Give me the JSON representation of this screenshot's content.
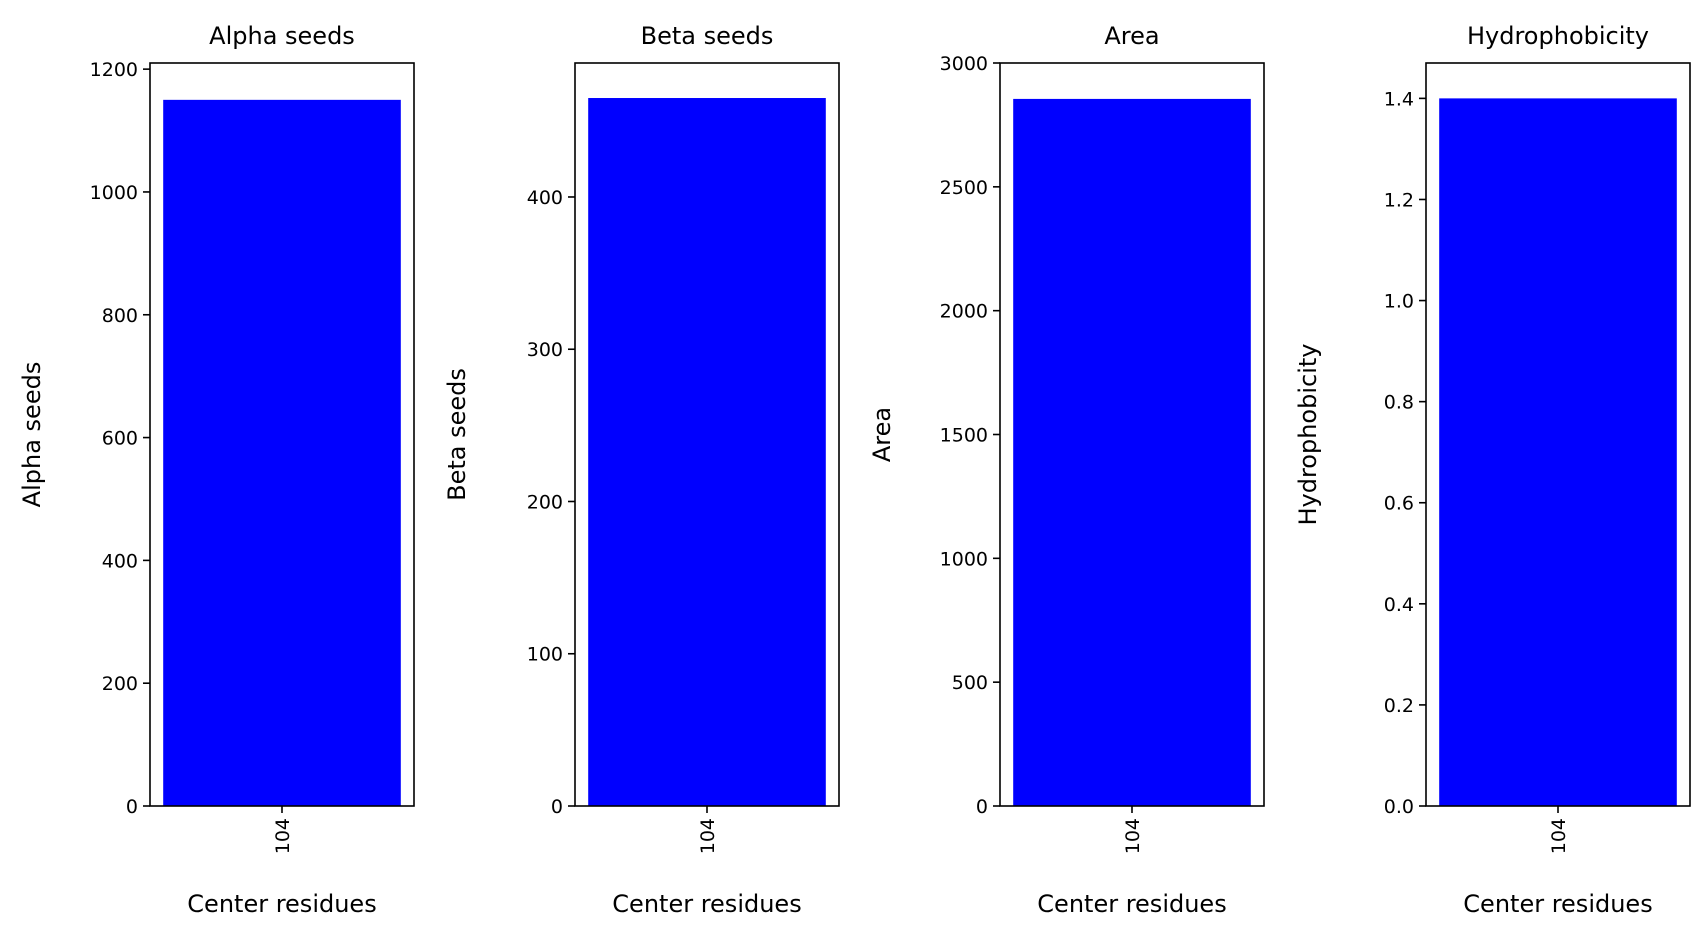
{
  "chart_data": [
    {
      "type": "bar",
      "title": "Alpha seeds",
      "xlabel": "Center residues",
      "ylabel": "Alpha seeds",
      "categories": [
        "104"
      ],
      "values": [
        1150
      ],
      "ylim": [
        0,
        1210
      ],
      "yticks": [
        0,
        200,
        400,
        600,
        800,
        1000,
        1200
      ],
      "ytick_labels": [
        "0",
        "200",
        "400",
        "600",
        "800",
        "1000",
        "1200"
      ],
      "bar_color": "#0000ff",
      "grid": false
    },
    {
      "type": "bar",
      "title": "Beta seeds",
      "xlabel": "Center residues",
      "ylabel": "Beta seeds",
      "categories": [
        "104"
      ],
      "values": [
        465
      ],
      "ylim": [
        0,
        488
      ],
      "yticks": [
        0,
        100,
        200,
        300,
        400
      ],
      "ytick_labels": [
        "0",
        "100",
        "200",
        "300",
        "400"
      ],
      "bar_color": "#0000ff",
      "grid": false
    },
    {
      "type": "bar",
      "title": "Area",
      "xlabel": "Center residues",
      "ylabel": "Area",
      "categories": [
        "104"
      ],
      "values": [
        2855
      ],
      "ylim": [
        0,
        3000
      ],
      "yticks": [
        0,
        500,
        1000,
        1500,
        2000,
        2500,
        3000
      ],
      "ytick_labels": [
        "0",
        "500",
        "1000",
        "1500",
        "2000",
        "2500",
        "3000"
      ],
      "bar_color": "#0000ff",
      "grid": false
    },
    {
      "type": "bar",
      "title": "Hydrophobicity",
      "xlabel": "Center residues",
      "ylabel": "Hydrophobicity",
      "categories": [
        "104"
      ],
      "values": [
        1.4
      ],
      "ylim": [
        0,
        1.47
      ],
      "yticks": [
        0,
        0.2,
        0.4,
        0.6,
        0.8,
        1.0,
        1.2,
        1.4
      ],
      "ytick_labels": [
        "0.0",
        "0.2",
        "0.4",
        "0.6",
        "0.8",
        "1.0",
        "1.2",
        "1.4"
      ],
      "bar_color": "#0000ff",
      "grid": false
    }
  ]
}
